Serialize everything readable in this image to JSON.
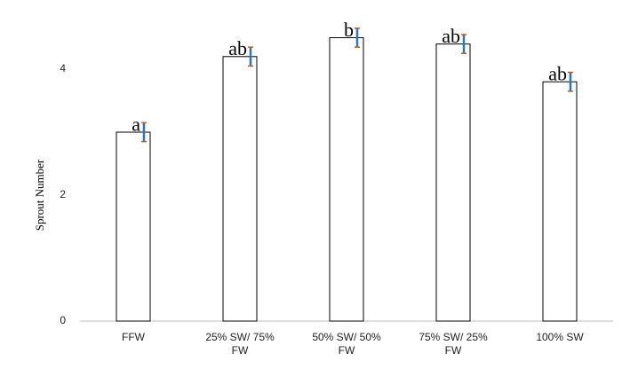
{
  "chart_data": {
    "type": "bar",
    "y_label": "Sprout Number",
    "categories": [
      "FFW",
      "25% SW/ 75% FW",
      "50% SW/ 50% FW",
      "75% SW/ 25% FW",
      "100% SW"
    ],
    "values": [
      3.0,
      4.2,
      4.5,
      4.4,
      3.8
    ],
    "errors": [
      0.15,
      0.15,
      0.15,
      0.15,
      0.15
    ],
    "annotations": [
      "a",
      "ab",
      "b",
      "ab",
      "ab"
    ],
    "color": "#ffffff",
    "ylim": [
      0,
      5
    ],
    "yticks": [
      0,
      2,
      4
    ],
    "grid": false
  }
}
